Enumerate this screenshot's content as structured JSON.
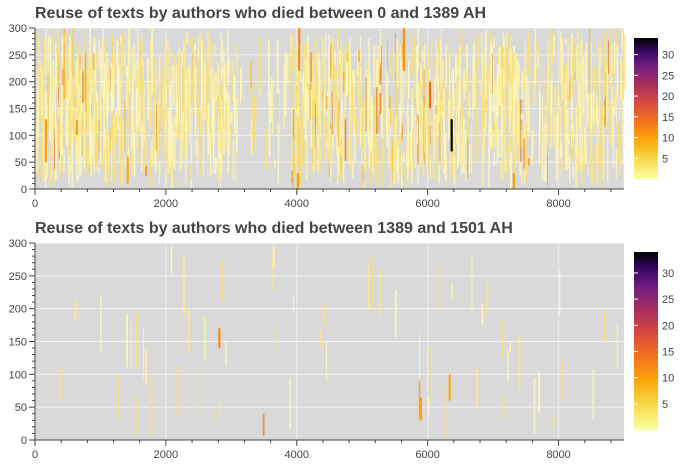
{
  "chart_data": [
    {
      "type": "heatmap",
      "title": "Reuse of texts by authors who died between 0 and 1389 AH",
      "xlabel": "",
      "ylabel": "",
      "xlim": [
        0,
        9000
      ],
      "ylim": [
        0,
        300
      ],
      "x_ticks": [
        0,
        2000,
        4000,
        6000,
        8000
      ],
      "y_ticks": [
        0,
        50,
        100,
        150,
        200,
        250,
        300
      ],
      "colorbar_ticks": [
        5,
        10,
        15,
        20,
        25,
        30
      ],
      "colorbar_range": [
        0,
        34
      ],
      "colormap": "inferno_r",
      "background_color": "#d9d9d9",
      "grid": true,
      "legend": "colorbar at right",
      "density_regions": [
        {
          "x_start": 0,
          "x_end": 1200,
          "density": 0.9,
          "value_level": "low-medium"
        },
        {
          "x_start": 1200,
          "x_end": 3000,
          "density": 0.65,
          "value_level": "low"
        },
        {
          "x_start": 3000,
          "x_end": 3900,
          "density": 0.15,
          "value_level": "low"
        },
        {
          "x_start": 3900,
          "x_end": 6500,
          "density": 0.7,
          "value_level": "low-medium"
        },
        {
          "x_start": 6500,
          "x_end": 6800,
          "density": 0.35,
          "value_level": "low"
        },
        {
          "x_start": 6800,
          "x_end": 9000,
          "density": 0.6,
          "value_level": "low"
        }
      ],
      "highlights": [
        {
          "x": 6350,
          "y_start": 70,
          "y_end": 130,
          "value": 34
        },
        {
          "x": 6020,
          "y_start": 150,
          "y_end": 200,
          "value": 15
        },
        {
          "x": 4020,
          "y_start": 220,
          "y_end": 300,
          "value": 12
        },
        {
          "x": 150,
          "y_start": 50,
          "y_end": 130,
          "value": 10
        },
        {
          "x": 1400,
          "y_start": 10,
          "y_end": 60,
          "value": 9
        },
        {
          "x": 4000,
          "y_start": 0,
          "y_end": 30,
          "value": 10
        },
        {
          "x": 7300,
          "y_start": 0,
          "y_end": 30,
          "value": 10
        },
        {
          "x": 5620,
          "y_start": 220,
          "y_end": 300,
          "value": 11
        }
      ]
    },
    {
      "type": "heatmap",
      "title": "Reuse of texts by authors who died between 1389 and 1501 AH",
      "xlabel": "",
      "ylabel": "",
      "xlim": [
        0,
        9000
      ],
      "ylim": [
        0,
        300
      ],
      "x_ticks": [
        0,
        2000,
        4000,
        6000,
        8000
      ],
      "y_ticks": [
        0,
        50,
        100,
        150,
        200,
        250,
        300
      ],
      "colorbar_ticks": [
        5,
        10,
        15,
        20,
        25,
        30
      ],
      "colorbar_range": [
        0,
        34
      ],
      "colormap": "inferno_r",
      "background_color": "#d9d9d9",
      "grid": true,
      "legend": "colorbar at right",
      "density_regions": [
        {
          "x_start": 0,
          "x_end": 3000,
          "density": 0.12,
          "value_level": "low"
        },
        {
          "x_start": 3000,
          "x_end": 5000,
          "density": 0.08,
          "value_level": "low"
        },
        {
          "x_start": 5000,
          "x_end": 9000,
          "density": 0.12,
          "value_level": "low"
        }
      ],
      "highlights": [
        {
          "x": 2800,
          "y_start": 140,
          "y_end": 170,
          "value": 12
        },
        {
          "x": 5880,
          "y_start": 30,
          "y_end": 65,
          "value": 10
        },
        {
          "x": 6320,
          "y_start": 60,
          "y_end": 100,
          "value": 9
        }
      ]
    }
  ]
}
